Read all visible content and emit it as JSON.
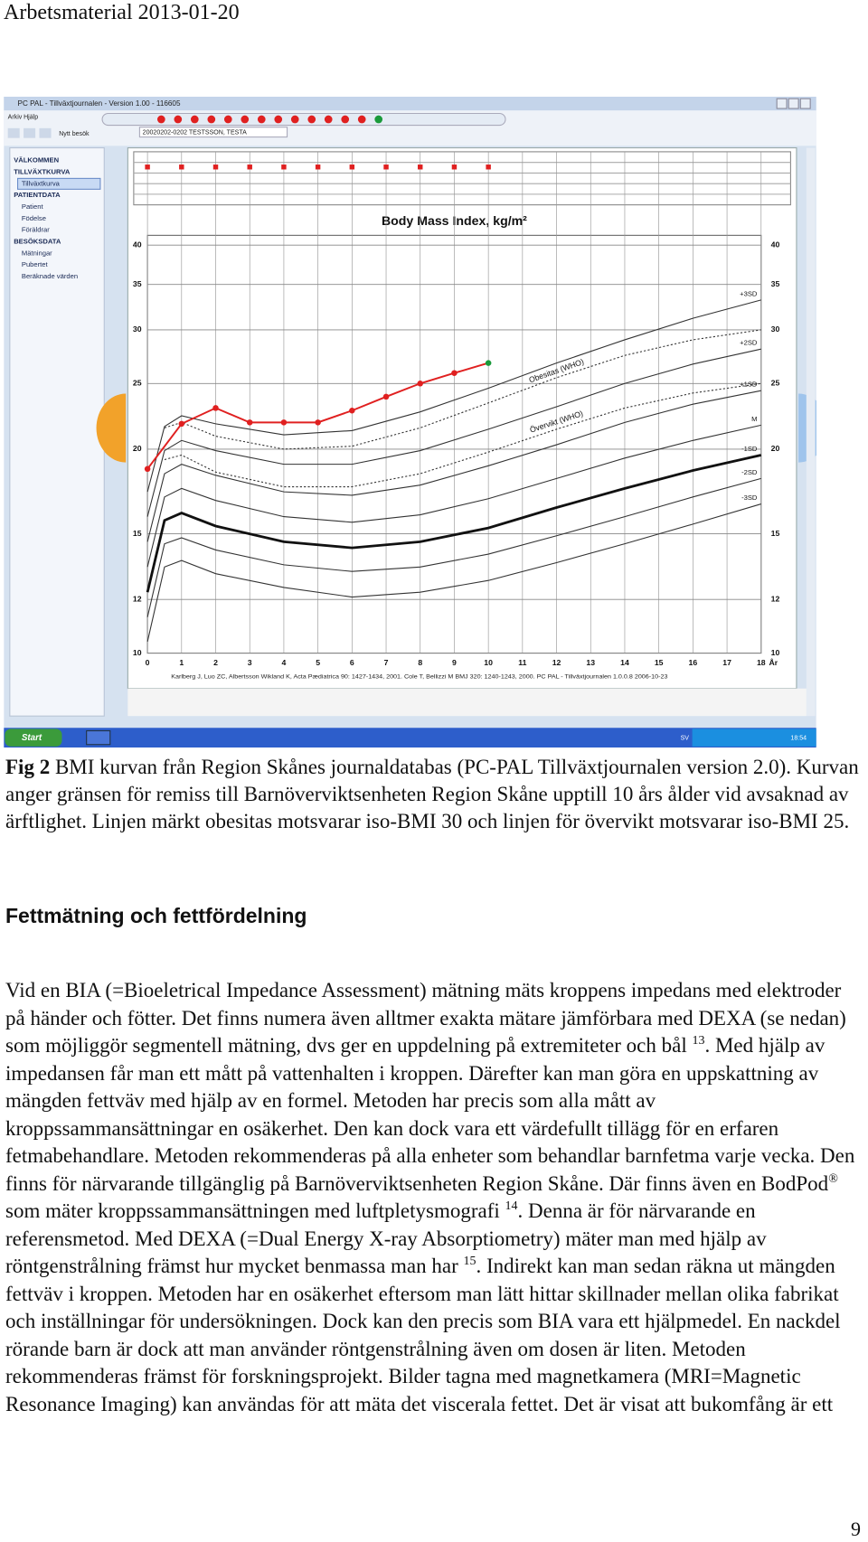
{
  "header": "Arbetsmaterial 2013-01-20",
  "screenshot": {
    "window_title": "PC PAL - Tillväxtjournalen - Version 1.00 - 116605",
    "menu": [
      "Arkiv",
      "Hjälp"
    ],
    "toolbar_button": "Nytt besök",
    "patient": "20020202-0202 TESTSSON, TESTA",
    "sidebar": [
      {
        "title": "VÄLKOMMEN",
        "items": []
      },
      {
        "title": "TILLVÄXTKURVA",
        "items": [
          "Tillväxtkurva"
        ]
      },
      {
        "title": "PATIENTDATA",
        "items": [
          "Patient",
          "Födelse",
          "Föräldrar"
        ]
      },
      {
        "title": "BESÖKSDATA",
        "items": [
          "Mätningar",
          "Pubertet",
          "Beräknade värden"
        ]
      }
    ],
    "taskbar": {
      "start": "Start",
      "language": "SV",
      "clock": "18:54"
    }
  },
  "chart_data": {
    "type": "line",
    "title": "Body Mass Index, kg/m²",
    "x_label": "År",
    "source": "Karlberg J, Luo ZC, Albertsson Wikland K, Acta Pædiatrica 90: 1427-1434, 2001.   Cole T, Bellizzi M BMJ 320: 1240-1243, 2000.   PC PAL - Tillväxtjournalen 1.0.0.8 2006-10-23",
    "xlim": [
      0,
      18
    ],
    "xticks": [
      0,
      1,
      2,
      3,
      4,
      5,
      6,
      7,
      8,
      9,
      10,
      11,
      12,
      13,
      14,
      15,
      16,
      17,
      18
    ],
    "ylim": [
      10,
      40
    ],
    "yticks": [
      10,
      12,
      15,
      20,
      25,
      30,
      35,
      40
    ],
    "log_y": true,
    "grid": true,
    "series": [
      {
        "name": "+3SD",
        "color": "#333333",
        "width": 1,
        "label_position": "end",
        "x": [
          0,
          0.5,
          1,
          2,
          4,
          6,
          8,
          10,
          12,
          14,
          16,
          18
        ],
        "values": [
          17.3,
          21.6,
          22.4,
          21.8,
          21.0,
          21.3,
          22.7,
          24.6,
          26.8,
          29.0,
          31.2,
          33.2
        ]
      },
      {
        "name": "+2SD",
        "color": "#333333",
        "width": 1,
        "label_position": "end",
        "x": [
          0,
          0.5,
          1,
          2,
          4,
          6,
          8,
          10,
          12,
          14,
          16,
          18
        ],
        "values": [
          15.9,
          19.9,
          20.6,
          19.9,
          19.0,
          19.0,
          19.9,
          21.4,
          23.1,
          25.0,
          26.7,
          28.1
        ]
      },
      {
        "name": "+1SD",
        "color": "#333333",
        "width": 1,
        "label_position": "end",
        "x": [
          0,
          0.5,
          1,
          2,
          4,
          6,
          8,
          10,
          12,
          14,
          16,
          18
        ],
        "values": [
          14.6,
          18.4,
          19.0,
          18.3,
          17.3,
          17.1,
          17.7,
          18.9,
          20.3,
          21.9,
          23.3,
          24.4
        ]
      },
      {
        "name": "M",
        "color": "#333333",
        "width": 1,
        "label_position": "end",
        "x": [
          0,
          0.5,
          1,
          2,
          4,
          6,
          8,
          10,
          12,
          14,
          16,
          18
        ],
        "values": [
          13.4,
          17.0,
          17.5,
          16.8,
          15.9,
          15.6,
          16.0,
          16.9,
          18.1,
          19.4,
          20.6,
          21.7
        ]
      },
      {
        "name": "-1SD",
        "color": "#111111",
        "width": 2.6,
        "label_position": "end",
        "x": [
          0,
          0.5,
          1,
          2,
          4,
          6,
          8,
          10,
          12,
          14,
          16,
          18
        ],
        "values": [
          12.3,
          15.7,
          16.1,
          15.4,
          14.6,
          14.3,
          14.6,
          15.3,
          16.4,
          17.5,
          18.6,
          19.6
        ]
      },
      {
        "name": "-2SD",
        "color": "#333333",
        "width": 1,
        "label_position": "end",
        "x": [
          0,
          0.5,
          1,
          2,
          4,
          6,
          8,
          10,
          12,
          14,
          16,
          18
        ],
        "values": [
          11.3,
          14.5,
          14.8,
          14.2,
          13.5,
          13.2,
          13.4,
          14.0,
          14.9,
          15.9,
          17.0,
          18.1
        ]
      },
      {
        "name": "-3SD",
        "color": "#333333",
        "width": 1,
        "label_position": "end",
        "x": [
          0,
          0.5,
          1,
          2,
          4,
          6,
          8,
          10,
          12,
          14,
          16,
          18
        ],
        "values": [
          10.4,
          13.4,
          13.7,
          13.1,
          12.5,
          12.1,
          12.3,
          12.8,
          13.6,
          14.5,
          15.5,
          16.6
        ]
      },
      {
        "name": "Obesitas (WHO)",
        "color": "#333333",
        "width": 1,
        "dash": true,
        "label_position": "along",
        "x": [
          0,
          0.5,
          1,
          2,
          4,
          6,
          8,
          10,
          12,
          14,
          16,
          18
        ],
        "values": [
          null,
          21.5,
          21.9,
          20.9,
          20.0,
          20.2,
          21.5,
          23.4,
          25.5,
          27.5,
          29.0,
          30.0
        ]
      },
      {
        "name": "Övervikt (WHO)",
        "color": "#333333",
        "width": 1,
        "dash": true,
        "label_position": "along",
        "x": [
          0,
          0.5,
          1,
          2,
          4,
          6,
          8,
          10,
          12,
          14,
          16,
          18
        ],
        "values": [
          null,
          19.3,
          19.6,
          18.5,
          17.6,
          17.6,
          18.4,
          19.8,
          21.4,
          23.0,
          24.2,
          25.0
        ]
      },
      {
        "color": "#e02020",
        "width": 1.8,
        "markers": true,
        "x": [
          0,
          1,
          2,
          3,
          4,
          5,
          6,
          7,
          8,
          9,
          10
        ],
        "values": [
          18.7,
          21.8,
          23.0,
          21.9,
          21.9,
          21.9,
          22.8,
          23.9,
          25.0,
          25.9,
          26.8
        ],
        "point_colors": [
          "#e02020",
          "#e02020",
          "#e02020",
          "#e02020",
          "#e02020",
          "#e02020",
          "#e02020",
          "#e02020",
          "#e02020",
          "#e02020",
          "#1a9a3a"
        ]
      }
    ]
  },
  "caption": {
    "label": "Fig 2",
    "text": " BMI kurvan från Region Skånes journaldatabas (PC-PAL Tillväxtjournalen version 2.0). Kurvan anger gränsen för remiss till Barnöverviktsenheten Region Skåne upptill 10 års ålder vid avsaknad av ärftlighet. Linjen märkt obesitas motsvarar iso-BMI 30 och linjen för övervikt motsvarar iso-BMI 25."
  },
  "heading": "Fettmätning och fettfördelning",
  "paragraph": [
    {
      "text": "Vid en BIA (=Bioeletrical Impedance Assessment) mätning mäts kroppens impedans med elektroder på händer och fötter.  Det finns numera även alltmer exakta mätare jämförbara med DEXA (se nedan) som möjliggör segmentell mätning, dvs ger en uppdelning på extremiteter och bål "
    },
    {
      "sup": "13"
    },
    {
      "text": ". Med hjälp av impedansen får man ett mått på vattenhalten i kroppen. Därefter kan man göra en uppskattning av mängden fettväv med hjälp av en formel. Metoden har precis som alla mått av kroppssammansättningar en osäkerhet. Den kan dock vara ett värdefullt tillägg för en erfaren fetmabehandlare. Metoden rekommenderas på alla enheter som behandlar barnfetma varje vecka. Den finns för närvarande tillgänglig på Barnöverviktsenheten Region Skåne. Där finns även en BodPod"
    },
    {
      "sup": "®"
    },
    {
      "text": " som mäter kroppssammansättningen med luftpletysmografi "
    },
    {
      "sup": "14"
    },
    {
      "text": ". Denna är för närvarande en referensmetod. Med DEXA (=Dual Energy X-ray Absorptiometry) mäter man med hjälp av röntgenstrålning främst hur mycket benmassa man har "
    },
    {
      "sup": "15"
    },
    {
      "text": ". Indirekt kan man sedan räkna ut mängden fettväv i kroppen. Metoden har en osäkerhet eftersom man lätt hittar skillnader mellan olika fabrikat och inställningar för undersökningen. Dock kan den precis som BIA vara ett hjälpmedel. En nackdel rörande barn är dock att man använder röntgenstrålning även om dosen är liten. Metoden rekommenderas främst för forskningsprojekt. Bilder tagna med magnetkamera (MRI=Magnetic Resonance Imaging) kan användas för att mäta det viscerala fettet. Det är visat att bukomfång är ett"
    }
  ],
  "page_number": "9"
}
